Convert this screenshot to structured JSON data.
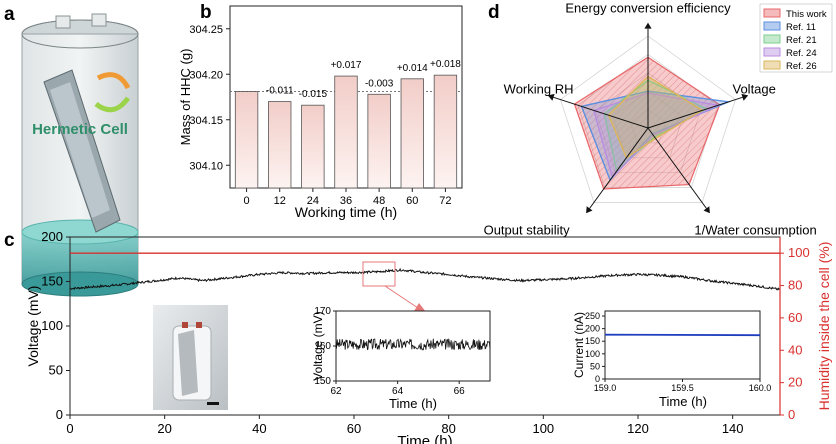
{
  "panel_labels": {
    "a": "a",
    "b": "b",
    "c": "c",
    "d": "d"
  },
  "panel_a": {
    "label": "Hermetic Cell"
  },
  "colors": {
    "bar_fill": "#f6d9d6",
    "bar_stroke": "#555555",
    "humidity": "#d8312e",
    "voltage": "#111111",
    "current": "#1f3fbf",
    "this_work": "#e9676b",
    "ref11": "#5b8fe0",
    "ref21": "#7ccf8e",
    "ref24": "#b98ee0",
    "ref26": "#dbb55a"
  },
  "chart_data": [
    {
      "id": "b",
      "type": "bar",
      "categories": [
        "0",
        "12",
        "24",
        "36",
        "48",
        "60",
        "72"
      ],
      "values": [
        304.181,
        304.17,
        304.166,
        304.198,
        304.178,
        304.195,
        304.199
      ],
      "labels": [
        "",
        "-0.011",
        "-0.015",
        "+0.017",
        "-0.003",
        "+0.014",
        "+0.018"
      ],
      "reference_line": 304.181,
      "xlabel": "Working time (h)",
      "ylabel": "Mass of HHC (g)",
      "ylim": [
        304.075,
        304.275
      ],
      "yticks": [
        "304.10",
        "304.15",
        "304.20",
        "304.25"
      ]
    },
    {
      "id": "c",
      "type": "line",
      "xlabel": "Time (h)",
      "ylabel_left": "Voltage (mV)",
      "ylabel_right": "Humidity inside the cell (%)",
      "xlim": [
        0,
        150
      ],
      "ylim_left": [
        0,
        200
      ],
      "ylim_right": [
        0,
        110
      ],
      "xticks": [
        "0",
        "20",
        "40",
        "60",
        "80",
        "100",
        "120",
        "140"
      ],
      "yticks_left": [
        "0",
        "50",
        "100",
        "150",
        "200"
      ],
      "yticks_right": [
        "0",
        "20",
        "40",
        "60",
        "80",
        "100"
      ],
      "series": [
        {
          "name": "Voltage",
          "axis": "left",
          "x": [
            0,
            5,
            10,
            15,
            20,
            23,
            28,
            35,
            40,
            45,
            50,
            55,
            60,
            65,
            70,
            75,
            80,
            85,
            90,
            95,
            100,
            105,
            110,
            115,
            120,
            125,
            130,
            135,
            140,
            145,
            150
          ],
          "y": [
            142,
            144,
            146,
            149,
            152,
            154,
            151,
            155,
            158,
            160,
            159,
            160,
            160,
            161,
            163,
            160,
            158,
            155,
            153,
            151,
            152,
            153,
            155,
            157,
            158,
            157,
            155,
            151,
            148,
            145,
            141
          ]
        },
        {
          "name": "Humidity",
          "axis": "right",
          "x": [
            0,
            150
          ],
          "y": [
            100,
            100
          ]
        }
      ]
    },
    {
      "id": "c_inset_voltage",
      "type": "line",
      "xlabel": "Time (h)",
      "ylabel": "Voltage (mV)",
      "xlim": [
        62,
        67
      ],
      "ylim": [
        150,
        170
      ],
      "xticks": [
        "62",
        "64",
        "66"
      ],
      "yticks": [
        "150",
        "160",
        "170"
      ],
      "series": [
        {
          "name": "Voltage",
          "mean": 160.5,
          "noise": 1.6
        }
      ]
    },
    {
      "id": "c_inset_current",
      "type": "line",
      "xlabel": "Time (h)",
      "ylabel": "Current (nA)",
      "xlim": [
        159.0,
        160.0
      ],
      "ylim": [
        0,
        270
      ],
      "xticks": [
        "159.0",
        "159.5",
        "160.0"
      ],
      "yticks": [
        "0",
        "50",
        "100",
        "150",
        "200",
        "250"
      ],
      "series": [
        {
          "name": "Current",
          "x": [
            159.0,
            160.0
          ],
          "y": [
            176,
            174
          ]
        }
      ]
    },
    {
      "id": "d",
      "type": "radar",
      "axes": [
        "Energy conversion efficiency",
        "Voltage",
        "1/Water consumption",
        "Output stability",
        "Working RH"
      ],
      "rmax": 1,
      "series": [
        {
          "name": "This work",
          "values": [
            0.77,
            0.82,
            0.76,
            0.82,
            0.84
          ]
        },
        {
          "name": "Ref. 11",
          "values": [
            0.4,
            0.92,
            0.08,
            0.7,
            0.76
          ]
        },
        {
          "name": "Ref. 21",
          "values": [
            0.52,
            0.67,
            0.12,
            0.58,
            0.5
          ]
        },
        {
          "name": "Ref. 24",
          "values": [
            0.38,
            0.8,
            0.1,
            0.66,
            0.62
          ]
        },
        {
          "name": "Ref. 26",
          "values": [
            0.56,
            0.62,
            0.14,
            0.4,
            0.45
          ]
        }
      ],
      "legend": [
        "This work",
        "Ref. 11",
        "Ref. 21",
        "Ref. 24",
        "Ref. 26"
      ]
    }
  ]
}
